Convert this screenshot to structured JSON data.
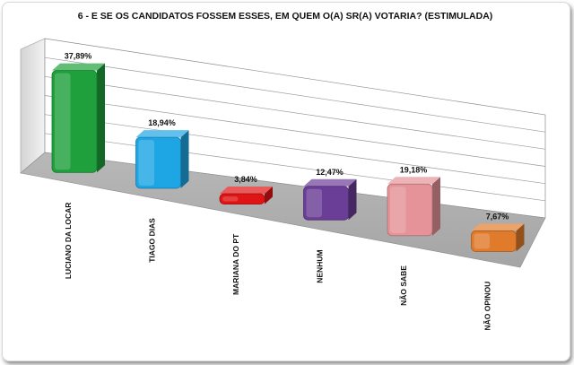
{
  "chart_data": {
    "type": "bar",
    "title": "6 - E SE OS CANDIDATOS FOSSEM ESSES, EM QUEM O(A) SR(A) VOTARIA? (ESTIMULADA)",
    "categories": [
      "LUCIANO DA LOCAR",
      "TIAGO DIAS",
      "MARIANA DO PT",
      "NENHUM",
      "NÃO SABE",
      "NÃO OPINOU"
    ],
    "values": [
      37.89,
      18.94,
      3.84,
      12.47,
      19.18,
      7.67
    ],
    "value_labels": [
      "37,89%",
      "18,94%",
      "3,84%",
      "12,47%",
      "19,18%",
      "7,67%"
    ],
    "colors": [
      "#1fa03c",
      "#1ea6e4",
      "#e01414",
      "#6a3d96",
      "#e59398",
      "#e07b2c"
    ],
    "ylim": [
      0,
      40
    ],
    "grid": true,
    "legend": "none",
    "style": "3d-perspective"
  }
}
